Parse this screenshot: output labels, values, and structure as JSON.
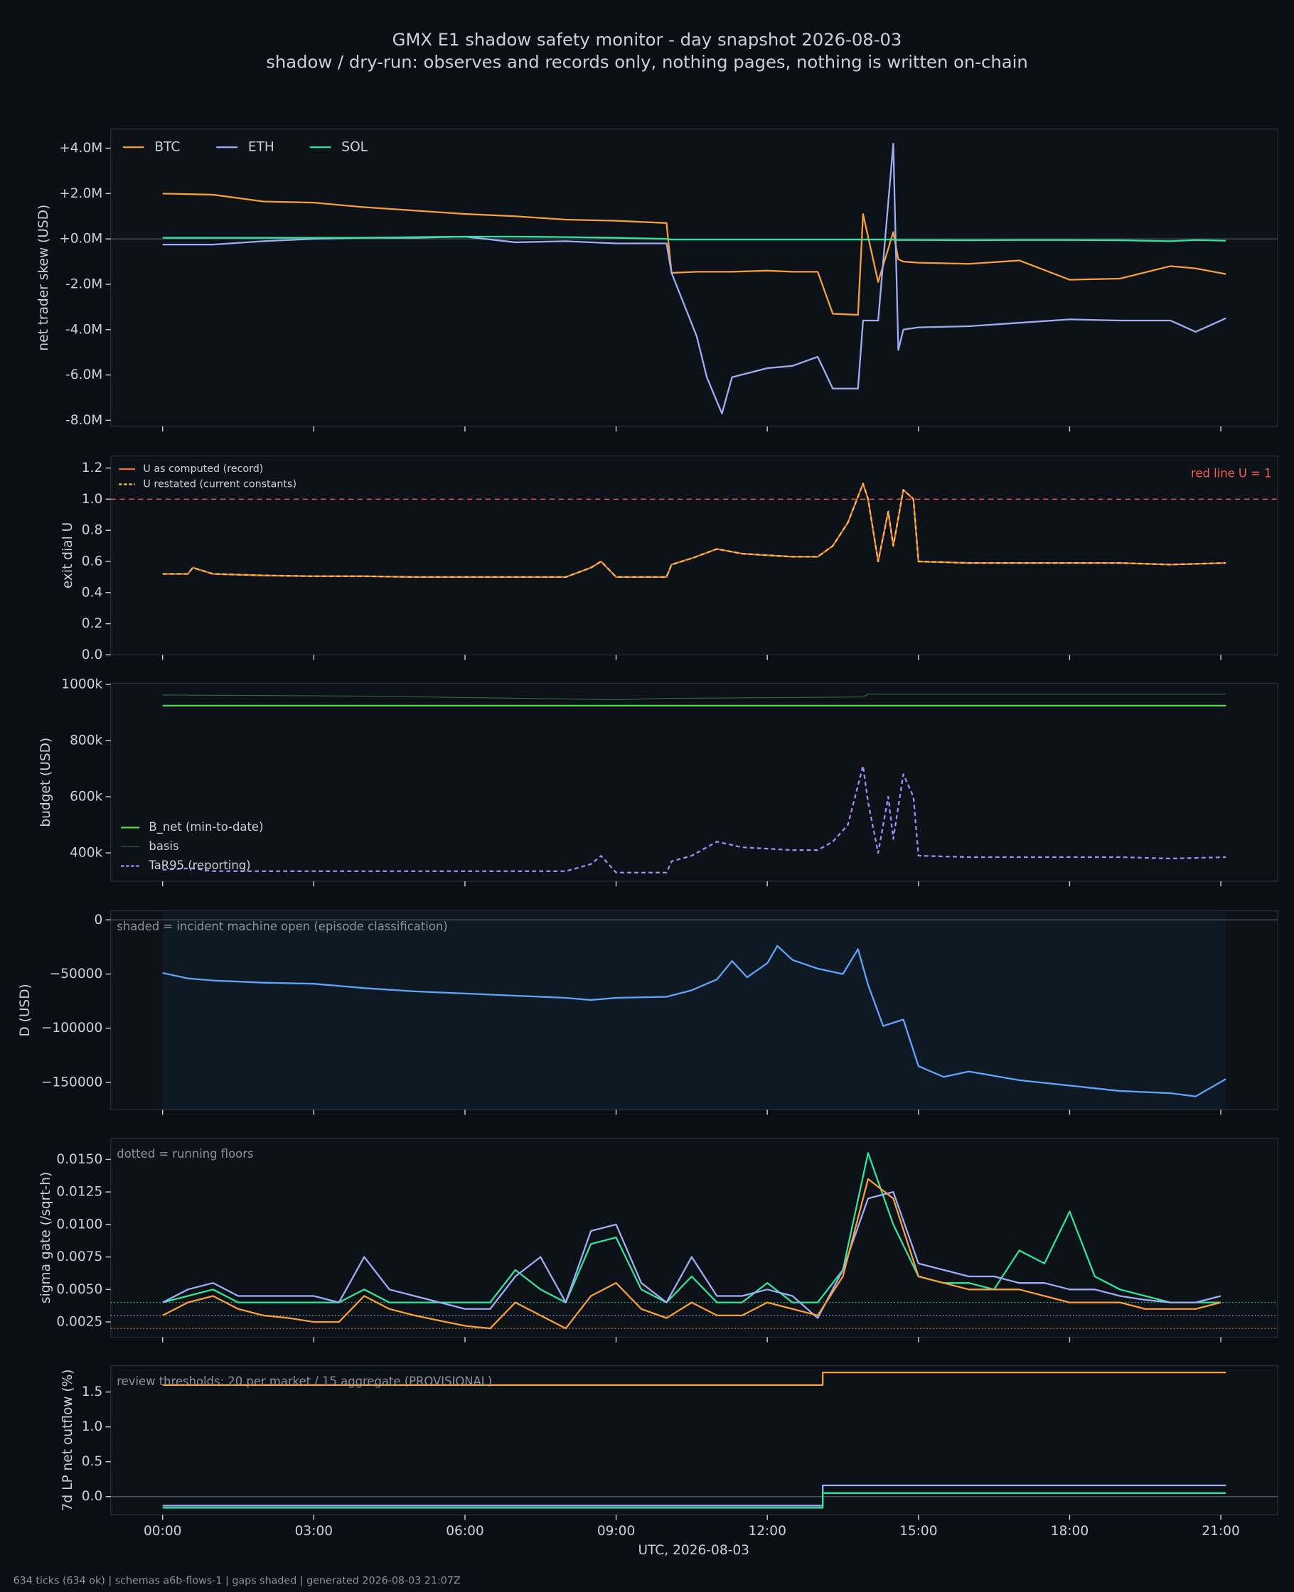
{
  "title": "GMX E1 shadow safety monitor - day snapshot 2026-08-03",
  "subtitle": "shadow / dry-run: observes and records only, nothing pages, nothing is written on-chain",
  "footer": "634 ticks (634 ok) | schemas a6b-flows-1 | gaps shaded | generated 2026-08-03 21:07Z",
  "shared_x": {
    "label": "UTC, 2026-08-03",
    "xlim": [
      -1.03,
      22.13
    ],
    "xticks": [
      {
        "value": 0,
        "label": "00:00"
      },
      {
        "value": 3,
        "label": "03:00"
      },
      {
        "value": 6,
        "label": "06:00"
      },
      {
        "value": 9,
        "label": "09:00"
      },
      {
        "value": 12,
        "label": "12:00"
      },
      {
        "value": 15,
        "label": "15:00"
      },
      {
        "value": 18,
        "label": "18:00"
      },
      {
        "value": 21,
        "label": "21:00"
      }
    ]
  },
  "chart_data": [
    {
      "type": "line",
      "ylabel": "net trader skew (USD)",
      "ylim": [
        -8270000,
        4850000
      ],
      "yticks": [
        {
          "value": 4000000,
          "label": "+4.0M"
        },
        {
          "value": 2000000,
          "label": "+2.0M"
        },
        {
          "value": 0,
          "label": "+0.0M"
        },
        {
          "value": -2000000,
          "label": "-2.0M"
        },
        {
          "value": -4000000,
          "label": "-4.0M"
        },
        {
          "value": -6000000,
          "label": "-6.0M"
        },
        {
          "value": -8000000,
          "label": "-8.0M"
        }
      ],
      "hlines": [
        {
          "value": 0,
          "color": "#4a505a"
        }
      ],
      "legend": {
        "loc": "upper left",
        "ncol": 3
      },
      "x": [
        0,
        1,
        2,
        3,
        4,
        5,
        6,
        7,
        8,
        9,
        10,
        10.1,
        10.6,
        10.8,
        11.1,
        11.3,
        12,
        12.5,
        13,
        13.3,
        13.8,
        13.9,
        14.2,
        14.5,
        14.6,
        14.7,
        15,
        16,
        17,
        18,
        19,
        20,
        20.5,
        21.1
      ],
      "series": [
        {
          "name": "BTC",
          "color": "#f5a03c",
          "values": [
            2000000,
            1950000,
            1650000,
            1600000,
            1400000,
            1250000,
            1100000,
            1000000,
            850000,
            800000,
            700000,
            -1500000,
            -1450000,
            -1450000,
            -1450000,
            -1450000,
            -1400000,
            -1450000,
            -1450000,
            -3300000,
            -3350000,
            1100000,
            -1900000,
            300000,
            -900000,
            -1000000,
            -1050000,
            -1100000,
            -950000,
            -1800000,
            -1750000,
            -1200000,
            -1300000,
            -1550000
          ]
        },
        {
          "name": "ETH",
          "color": "#9fadf5",
          "values": [
            -250000,
            -250000,
            -100000,
            0,
            50000,
            50000,
            100000,
            -150000,
            -100000,
            -200000,
            -200000,
            -1500000,
            -4300000,
            -6100000,
            -7700000,
            -6100000,
            -5700000,
            -5600000,
            -5200000,
            -6600000,
            -6600000,
            -3600000,
            -3600000,
            4200000,
            -4900000,
            -4000000,
            -3900000,
            -3850000,
            -3700000,
            -3550000,
            -3600000,
            -3600000,
            -4100000,
            -3500000
          ]
        },
        {
          "name": "SOL",
          "color": "#34e39a",
          "values": [
            50000,
            50000,
            50000,
            50000,
            50000,
            80000,
            100000,
            100000,
            80000,
            50000,
            0,
            -30000,
            -30000,
            -30000,
            -30000,
            -30000,
            -30000,
            -30000,
            -30000,
            -30000,
            -30000,
            -30000,
            -30000,
            -30000,
            -50000,
            -50000,
            -50000,
            -60000,
            -50000,
            -50000,
            -60000,
            -100000,
            -50000,
            -80000
          ]
        }
      ]
    },
    {
      "type": "line",
      "ylabel": "exit dial U",
      "ylim": [
        0,
        1.278
      ],
      "yticks": [
        {
          "value": 0,
          "label": "0.0"
        },
        0.2,
        0.4,
        0.6,
        0.8,
        {
          "value": 1,
          "label": "1.0"
        },
        1.2
      ],
      "hlines": [
        {
          "value": 1,
          "color": "#f25c54",
          "dash": "5 4"
        }
      ],
      "annotation": "red line U = 1",
      "annotation_loc": "upper right",
      "annotation_color": "#f25c54",
      "legend": {
        "loc": "upper left",
        "ncol": 1
      },
      "x": [
        0,
        0.5,
        0.6,
        1,
        2,
        3,
        4,
        5,
        6,
        7,
        8,
        8.5,
        8.7,
        9,
        9.5,
        10,
        10.1,
        10.5,
        11,
        11.5,
        12,
        12.5,
        13,
        13.3,
        13.6,
        13.9,
        14,
        14.2,
        14.4,
        14.5,
        14.7,
        14.9,
        15,
        16,
        17,
        18,
        19,
        20,
        21.1
      ],
      "series": [
        {
          "name": "U as computed (record)",
          "color": "#f0703c",
          "values": [
            0.52,
            0.52,
            0.56,
            0.52,
            0.51,
            0.505,
            0.505,
            0.5,
            0.5,
            0.5,
            0.5,
            0.56,
            0.6,
            0.5,
            0.5,
            0.5,
            0.58,
            0.62,
            0.68,
            0.65,
            0.64,
            0.63,
            0.63,
            0.7,
            0.85,
            1.1,
            1.0,
            0.6,
            0.92,
            0.7,
            1.06,
            1.0,
            0.6,
            0.59,
            0.59,
            0.59,
            0.59,
            0.58,
            0.59
          ]
        },
        {
          "name": "U restated (current constants)",
          "color": "#e8c24a",
          "linestyle": "dashed",
          "values": [
            0.52,
            0.52,
            0.56,
            0.52,
            0.51,
            0.505,
            0.505,
            0.5,
            0.5,
            0.5,
            0.5,
            0.56,
            0.6,
            0.5,
            0.5,
            0.5,
            0.58,
            0.62,
            0.68,
            0.65,
            0.64,
            0.63,
            0.63,
            0.7,
            0.85,
            1.1,
            1.0,
            0.6,
            0.92,
            0.7,
            1.06,
            1.0,
            0.6,
            0.59,
            0.59,
            0.59,
            0.59,
            0.58,
            0.59
          ]
        }
      ]
    },
    {
      "type": "line",
      "ylabel": "budget (USD)",
      "ylim": [
        299000,
        1003600
      ],
      "yticks": [
        {
          "value": 400000,
          "label": "400k"
        },
        {
          "value": 600000,
          "label": "600k"
        },
        {
          "value": 800000,
          "label": "800k"
        },
        {
          "value": 1000000,
          "label": "1000k"
        }
      ],
      "legend": {
        "loc": "lower left",
        "ncol": 1
      },
      "x": [
        0,
        0.5,
        0.6,
        1,
        2,
        3,
        4,
        5,
        6,
        7,
        8,
        8.5,
        8.7,
        9,
        9.5,
        10,
        10.1,
        10.5,
        11,
        11.5,
        12,
        12.5,
        13,
        13.3,
        13.6,
        13.9,
        14,
        14.2,
        14.4,
        14.5,
        14.7,
        14.9,
        15,
        16,
        17,
        18,
        19,
        20,
        21.1
      ],
      "series": [
        {
          "name": "B_net (min-to-date)",
          "color": "#4ade50",
          "x": [
            0,
            21.1
          ],
          "values": [
            924000,
            924000
          ]
        },
        {
          "name": "basis",
          "color": "#2f6b3a",
          "linewidth": 0.8,
          "x": [
            0,
            4,
            8,
            9,
            10,
            13.9,
            14,
            21.1
          ],
          "values": [
            962000,
            958000,
            948000,
            945000,
            950000,
            955000,
            965000,
            965000
          ]
        },
        {
          "name": "TaR95 (reporting)",
          "color": "#a78bfa",
          "linestyle": "dashed",
          "values": [
            340000,
            345000,
            345000,
            335000,
            335000,
            335000,
            335000,
            335000,
            335000,
            335000,
            335000,
            360000,
            390000,
            330000,
            330000,
            330000,
            370000,
            390000,
            440000,
            420000,
            415000,
            410000,
            410000,
            440000,
            500000,
            710000,
            580000,
            400000,
            600000,
            450000,
            680000,
            600000,
            390000,
            385000,
            385000,
            385000,
            385000,
            380000,
            385000
          ]
        }
      ]
    },
    {
      "type": "line",
      "ylabel": "D (USD)",
      "ylim": [
        -175300,
        8440
      ],
      "yticks": [
        0,
        {
          "value": -50000,
          "label": "−50000"
        },
        {
          "value": -100000,
          "label": "−100000"
        },
        {
          "value": -150000,
          "label": "−150000"
        }
      ],
      "hlines": [
        {
          "value": 0,
          "color": "#4a505a"
        }
      ],
      "shade": [
        0,
        21.1
      ],
      "annotation": "shaded = incident machine open (episode classification)",
      "annotation_loc": "upper left",
      "x": [
        0,
        0.5,
        1,
        2,
        3,
        4,
        5,
        6,
        7,
        8,
        8.5,
        9,
        10,
        10.5,
        11,
        11.3,
        11.6,
        12,
        12.2,
        12.5,
        13,
        13.5,
        13.8,
        14,
        14.3,
        14.7,
        15,
        15.5,
        16,
        17,
        18,
        19,
        20,
        20.5,
        21.1
      ],
      "series": [
        {
          "color": "#60a5fa",
          "values": [
            -49000,
            -54000,
            -56000,
            -58000,
            -59000,
            -63000,
            -66000,
            -68000,
            -70000,
            -72000,
            -74000,
            -72000,
            -71000,
            -65000,
            -55000,
            -38000,
            -53000,
            -40000,
            -24000,
            -37000,
            -45000,
            -50000,
            -27000,
            -60000,
            -98000,
            -92000,
            -135000,
            -145000,
            -140000,
            -148000,
            -153000,
            -158000,
            -160000,
            -163000,
            -147000
          ]
        }
      ]
    },
    {
      "type": "line",
      "ylabel": "sigma gate (/sqrt-h)",
      "ylim": [
        0.00133,
        0.01664
      ],
      "yticks": [
        0.0025,
        {
          "value": 0.005,
          "label": "0.0050"
        },
        0.0075,
        {
          "value": 0.01,
          "label": "0.0100"
        },
        0.0125,
        {
          "value": 0.015,
          "label": "0.0150"
        }
      ],
      "annotation": "dotted = running floors",
      "annotation_loc": "upper left",
      "x": [
        0,
        0.5,
        1,
        1.5,
        2,
        2.5,
        3,
        3.5,
        4,
        4.5,
        5,
        5.5,
        6,
        6.5,
        7,
        7.5,
        8,
        8.5,
        9,
        9.5,
        10,
        10.5,
        11,
        11.5,
        12,
        12.5,
        13,
        13.5,
        14,
        14.5,
        15,
        15.5,
        16,
        16.5,
        17,
        17.5,
        18,
        18.5,
        19,
        19.5,
        20,
        20.5,
        21
      ],
      "series": [
        {
          "color": "#34e39a",
          "floor": 0.004,
          "values": [
            0.004,
            0.0045,
            0.005,
            0.004,
            0.004,
            0.004,
            0.004,
            0.004,
            0.005,
            0.004,
            0.004,
            0.004,
            0.004,
            0.004,
            0.0065,
            0.005,
            0.004,
            0.0085,
            0.009,
            0.005,
            0.004,
            0.006,
            0.004,
            0.004,
            0.0055,
            0.004,
            0.004,
            0.0065,
            0.0155,
            0.01,
            0.006,
            0.0055,
            0.0055,
            0.005,
            0.008,
            0.007,
            0.011,
            0.006,
            0.005,
            0.0045,
            0.004,
            0.004,
            0.004
          ]
        },
        {
          "color": "#9fadf5",
          "floor": 0.003,
          "values": [
            0.004,
            0.005,
            0.0055,
            0.0045,
            0.0045,
            0.0045,
            0.0045,
            0.004,
            0.0075,
            0.005,
            0.0045,
            0.004,
            0.0035,
            0.0035,
            0.006,
            0.0075,
            0.004,
            0.0095,
            0.01,
            0.0055,
            0.004,
            0.0075,
            0.0045,
            0.0045,
            0.005,
            0.0045,
            0.0028,
            0.0065,
            0.012,
            0.0125,
            0.007,
            0.0065,
            0.006,
            0.006,
            0.0055,
            0.0055,
            0.005,
            0.005,
            0.0045,
            0.0042,
            0.004,
            0.004,
            0.0045
          ]
        },
        {
          "color": "#f5a03c",
          "floor": 0.002,
          "values": [
            0.003,
            0.004,
            0.0045,
            0.0035,
            0.003,
            0.0028,
            0.0025,
            0.0025,
            0.0045,
            0.0035,
            0.003,
            0.0026,
            0.0022,
            0.002,
            0.004,
            0.003,
            0.002,
            0.0045,
            0.0055,
            0.0035,
            0.0028,
            0.004,
            0.003,
            0.003,
            0.004,
            0.0035,
            0.003,
            0.006,
            0.0135,
            0.012,
            0.006,
            0.0055,
            0.005,
            0.005,
            0.005,
            0.0045,
            0.004,
            0.004,
            0.004,
            0.0035,
            0.0035,
            0.0035,
            0.004
          ]
        }
      ]
    },
    {
      "type": "line",
      "ylabel": "7d LP net outflow (%)",
      "ylim": [
        -0.262,
        1.879
      ],
      "yticks": [
        {
          "value": 0,
          "label": "0.0"
        },
        0.5,
        {
          "value": 1,
          "label": "1.0"
        },
        1.5
      ],
      "hlines": [
        {
          "value": 0,
          "color": "#4a505a"
        }
      ],
      "annotation": "review thresholds: 20 per market / 15 aggregate (PROVISIONAL)",
      "annotation_loc": "upper left",
      "x": [
        0,
        13.1,
        13.1,
        21.1
      ],
      "series": [
        {
          "color": "#f5a03c",
          "values": [
            1.6,
            1.6,
            1.78,
            1.78
          ]
        },
        {
          "color": "#9fadf5",
          "values": [
            -0.13,
            -0.13,
            0.16,
            0.16
          ]
        },
        {
          "color": "#34e39a",
          "values": [
            -0.16,
            -0.16,
            0.05,
            0.05
          ]
        }
      ]
    }
  ]
}
